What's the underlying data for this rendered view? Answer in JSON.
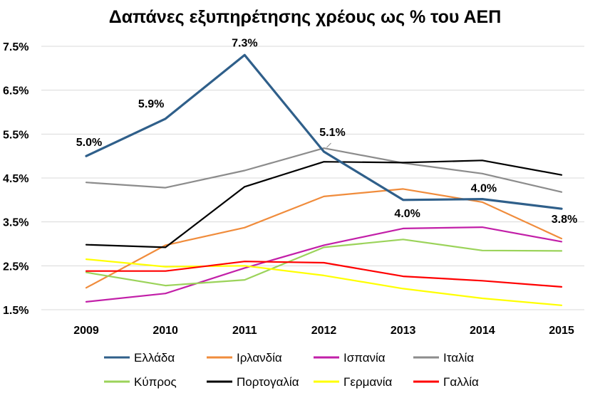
{
  "chart_data": {
    "type": "line",
    "title": "Δαπάνες εξυπηρέτησης χρέους ως % του ΑΕΠ",
    "xlabel": "",
    "ylabel": "",
    "categories": [
      "2009",
      "2010",
      "2011",
      "2012",
      "2013",
      "2014",
      "2015"
    ],
    "ylim": [
      1.5,
      7.5
    ],
    "yticks": [
      1.5,
      2.5,
      3.5,
      4.5,
      5.5,
      6.5,
      7.5
    ],
    "ytick_labels": [
      "1.5%",
      "2.5%",
      "3.5%",
      "4.5%",
      "5.5%",
      "6.5%",
      "7.5%"
    ],
    "grid": true,
    "legend_position": "bottom",
    "series": [
      {
        "name": "Ελλάδα",
        "color": "#2f5f8a",
        "values": [
          5.0,
          5.85,
          7.3,
          5.1,
          4.0,
          4.02,
          3.8
        ]
      },
      {
        "name": "Ιρλανδία",
        "color": "#f08c3c",
        "values": [
          2.0,
          2.97,
          3.37,
          4.08,
          4.25,
          3.95,
          3.12
        ]
      },
      {
        "name": "Ισπανία",
        "color": "#c21fa8",
        "values": [
          1.68,
          1.87,
          2.45,
          2.97,
          3.35,
          3.38,
          3.05
        ]
      },
      {
        "name": "Ιταλία",
        "color": "#8c8c8c",
        "values": [
          4.4,
          4.28,
          4.67,
          5.18,
          4.84,
          4.6,
          4.18
        ]
      },
      {
        "name": "Κύπρος",
        "color": "#9bd35a",
        "values": [
          2.35,
          2.05,
          2.18,
          2.92,
          3.1,
          2.85,
          2.84
        ]
      },
      {
        "name": "Πορτογαλία",
        "color": "#000000",
        "values": [
          2.98,
          2.92,
          4.3,
          4.87,
          4.85,
          4.9,
          4.57
        ]
      },
      {
        "name": "Γερμανία",
        "color": "#ffff00",
        "values": [
          2.65,
          2.48,
          2.5,
          2.28,
          1.98,
          1.76,
          1.6
        ]
      },
      {
        "name": "Γαλλία",
        "color": "#ff0000",
        "values": [
          2.38,
          2.38,
          2.6,
          2.57,
          2.26,
          2.16,
          2.02
        ]
      }
    ],
    "data_labels": [
      {
        "series": "Ελλάδα",
        "index": 0,
        "text": "5.0%",
        "pos": "above"
      },
      {
        "series": "Ελλάδα",
        "index": 1,
        "text": "5.9%",
        "pos": "above-left"
      },
      {
        "series": "Ελλάδα",
        "index": 2,
        "text": "7.3%",
        "pos": "above"
      },
      {
        "series": "Ελλάδα",
        "index": 3,
        "text": "5.1%",
        "pos": "above-right"
      },
      {
        "series": "Ελλάδα",
        "index": 4,
        "text": "4.0%",
        "pos": "below"
      },
      {
        "series": "Ελλάδα",
        "index": 5,
        "text": "4.0%",
        "pos": "above"
      },
      {
        "series": "Ελλάδα",
        "index": 6,
        "text": "3.8%",
        "pos": "below"
      }
    ]
  }
}
